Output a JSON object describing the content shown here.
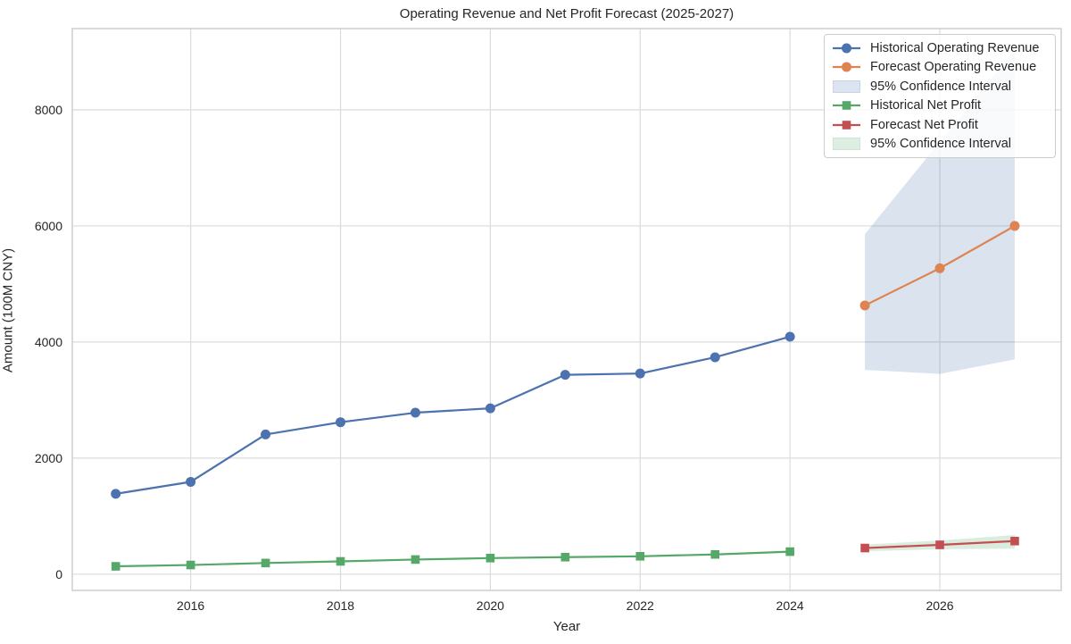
{
  "chart_data": {
    "type": "line",
    "title": "Operating Revenue and Net Profit Forecast (2025-2027)",
    "xlabel": "Year",
    "ylabel": "Amount (100M CNY)",
    "xlim": [
      2014.42,
      2027.62
    ],
    "ylim": [
      -280,
      9400
    ],
    "x_ticks": [
      2016,
      2018,
      2020,
      2022,
      2024,
      2026
    ],
    "y_ticks": [
      0,
      2000,
      4000,
      6000,
      8000
    ],
    "grid": true,
    "legend_position": "upper right",
    "series": [
      {
        "name": "Historical Operating Revenue",
        "marker": "circle",
        "color": "#4C72B0",
        "x": [
          2015,
          2016,
          2017,
          2018,
          2019,
          2020,
          2021,
          2022,
          2023,
          2024
        ],
        "y": [
          1384,
          1590,
          2407,
          2618,
          2782,
          2857,
          3434,
          3457,
          3737,
          4091
        ]
      },
      {
        "name": "Forecast Operating Revenue",
        "marker": "circle",
        "color": "#DD8452",
        "x": [
          2025,
          2026,
          2027
        ],
        "y": [
          4630,
          5270,
          6000
        ]
      },
      {
        "name": "Historical Net Profit",
        "marker": "square",
        "color": "#55A868",
        "x": [
          2015,
          2016,
          2017,
          2018,
          2019,
          2020,
          2021,
          2022,
          2023,
          2024
        ],
        "y": [
          135,
          158,
          192,
          220,
          252,
          277,
          293,
          308,
          340,
          388
        ]
      },
      {
        "name": "Forecast Net Profit",
        "marker": "square",
        "color": "#C44E52",
        "x": [
          2025,
          2026,
          2027
        ],
        "y": [
          450,
          505,
          570
        ]
      }
    ],
    "bands": [
      {
        "name": "95% Confidence Interval",
        "series": "Forecast Operating Revenue",
        "color": "#4C72B0",
        "opacity": 0.2,
        "x": [
          2025,
          2026,
          2027
        ],
        "upper": [
          5860,
          7450,
          9020
        ],
        "lower": [
          3520,
          3450,
          3700
        ]
      },
      {
        "name": "95% Confidence Interval",
        "series": "Forecast Net Profit",
        "color": "#55A868",
        "opacity": 0.22,
        "x": [
          2025,
          2026,
          2027
        ],
        "upper": [
          510,
          580,
          675
        ],
        "lower": [
          395,
          430,
          440
        ]
      }
    ],
    "legend": [
      {
        "label": "Historical Operating Revenue",
        "swatch": "line-circle",
        "color": "#4C72B0"
      },
      {
        "label": "Forecast Operating Revenue",
        "swatch": "line-circle",
        "color": "#DD8452"
      },
      {
        "label": "95% Confidence Interval",
        "swatch": "patch",
        "color": "#DCE3F1",
        "border": "#C9D4E8"
      },
      {
        "label": "Historical Net Profit",
        "swatch": "line-square",
        "color": "#55A868"
      },
      {
        "label": "Forecast Net Profit",
        "swatch": "line-square",
        "color": "#C44E52"
      },
      {
        "label": "95% Confidence Interval",
        "swatch": "patch",
        "color": "#DEEEE2",
        "border": "#CCE4D2"
      }
    ],
    "style": {
      "grid_color": "#DBDBDB",
      "spine_color": "#CBCBCB",
      "text_color": "#262626",
      "background": "#FFFFFF",
      "line_width": 2.2,
      "marker_radius": 5.5
    }
  }
}
